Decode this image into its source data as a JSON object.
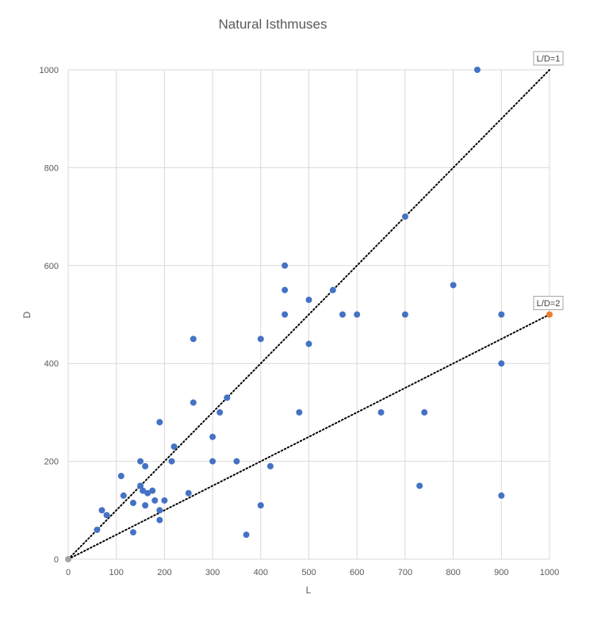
{
  "chart_data": {
    "type": "scatter",
    "title": "Natural Isthmuses",
    "xlabel": "L",
    "ylabel": "D",
    "xlim": [
      0,
      1000
    ],
    "ylim": [
      0,
      1000
    ],
    "xticks": [
      0,
      100,
      200,
      300,
      400,
      500,
      600,
      700,
      800,
      900,
      1000
    ],
    "yticks": [
      0,
      200,
      400,
      600,
      800,
      1000
    ],
    "grid": true,
    "legend": "none",
    "colors": {
      "points": "#4472c4",
      "origin": "#a5a5a5",
      "highlight": "#ed7d31",
      "grid": "#d9d9d9",
      "reference_line": "#000000"
    },
    "series": [
      {
        "points": [
          [
            0,
            0
          ],
          [
            60,
            60
          ],
          [
            70,
            100
          ],
          [
            80,
            90
          ],
          [
            110,
            170
          ],
          [
            115,
            130
          ],
          [
            135,
            115
          ],
          [
            135,
            55
          ],
          [
            150,
            200
          ],
          [
            150,
            150
          ],
          [
            155,
            140
          ],
          [
            160,
            190
          ],
          [
            160,
            110
          ],
          [
            165,
            135
          ],
          [
            175,
            140
          ],
          [
            180,
            120
          ],
          [
            190,
            280
          ],
          [
            190,
            100
          ],
          [
            190,
            80
          ],
          [
            200,
            120
          ],
          [
            215,
            200
          ],
          [
            220,
            230
          ],
          [
            250,
            135
          ],
          [
            260,
            450
          ],
          [
            260,
            320
          ],
          [
            300,
            250
          ],
          [
            300,
            200
          ],
          [
            315,
            300
          ],
          [
            330,
            330
          ],
          [
            350,
            200
          ],
          [
            370,
            50
          ],
          [
            400,
            450
          ],
          [
            400,
            110
          ],
          [
            420,
            190
          ],
          [
            450,
            600
          ],
          [
            450,
            550
          ],
          [
            450,
            500
          ],
          [
            480,
            300
          ],
          [
            500,
            530
          ],
          [
            500,
            440
          ],
          [
            550,
            550
          ],
          [
            570,
            500
          ],
          [
            600,
            500
          ],
          [
            650,
            300
          ],
          [
            700,
            700
          ],
          [
            700,
            500
          ],
          [
            730,
            150
          ],
          [
            740,
            300
          ],
          [
            800,
            560
          ],
          [
            850,
            1000
          ],
          [
            900,
            500
          ],
          [
            900,
            400
          ],
          [
            900,
            130
          ],
          [
            1000,
            500
          ]
        ]
      }
    ],
    "reference_lines": [
      {
        "label": "L/D=1",
        "from": [
          0,
          0
        ],
        "to": [
          1000,
          1000
        ]
      },
      {
        "label": "L/D=2",
        "from": [
          0,
          0
        ],
        "to": [
          1000,
          500
        ]
      }
    ]
  }
}
